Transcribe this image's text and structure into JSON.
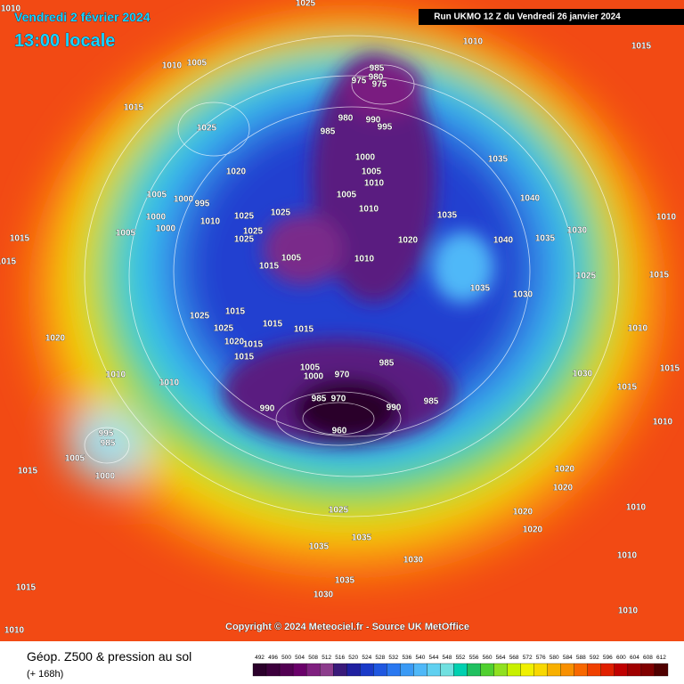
{
  "header": {
    "valid_date": "Vendredi 2 février 2024",
    "local_time": "13:00 locale",
    "run": "Run UKMO 12 Z du Vendredi 26 janvier 2024"
  },
  "copyright": "Copyright © 2024 Meteociel.fr - Source UK MetOffice",
  "legend": {
    "title": "Géop. Z500 & pression au sol",
    "lead_time": "(+ 168h)",
    "scale": [
      492,
      496,
      500,
      504,
      508,
      512,
      516,
      520,
      524,
      528,
      532,
      536,
      540,
      544,
      548,
      552,
      556,
      560,
      564,
      568,
      572,
      576,
      580,
      584,
      588,
      592,
      596,
      600,
      604,
      608,
      612
    ],
    "colors": [
      "#2b002b",
      "#3d003d",
      "#520052",
      "#6a006a",
      "#7f1f7f",
      "#8c3c8c",
      "#3a1a7a",
      "#2020a0",
      "#1a3ac8",
      "#1f57e0",
      "#2a78f0",
      "#3a9af5",
      "#4fb8f8",
      "#60d0f0",
      "#70e0e0",
      "#00d0b0",
      "#20c060",
      "#50d030",
      "#90e020",
      "#c8f000",
      "#f0f000",
      "#f8d800",
      "#f8b000",
      "#f89000",
      "#f86800",
      "#f04000",
      "#e02000",
      "#c00000",
      "#a00000",
      "#800000",
      "#500000"
    ]
  },
  "pressure_labels": [
    1010,
    1025,
    1010,
    1015,
    1010,
    1005,
    985,
    980,
    975,
    975,
    1015,
    980,
    990,
    995,
    985,
    1025,
    1000,
    1035,
    1020,
    1005,
    1010,
    1005,
    1000,
    995,
    1005,
    1010,
    1025,
    1025,
    1040,
    1000,
    1035,
    1010,
    1005,
    1000,
    1025,
    1025,
    1020,
    1040,
    1035,
    1030,
    1010,
    1015,
    1015,
    1005,
    1010,
    1015,
    1025,
    1015,
    1035,
    1030,
    1025,
    1015,
    1015,
    1015,
    1025,
    1020,
    1010,
    1020,
    1015,
    1015,
    1005,
    1000,
    970,
    985,
    1015,
    1010,
    1010,
    1030,
    1015,
    1010,
    990,
    985,
    970,
    960,
    990,
    985,
    995,
    985,
    1005,
    1015,
    1000,
    1020,
    1020,
    1025,
    1020,
    1010,
    1035,
    1035,
    1020,
    1030,
    1035,
    1015,
    1030,
    1010,
    1010,
    1010
  ]
}
